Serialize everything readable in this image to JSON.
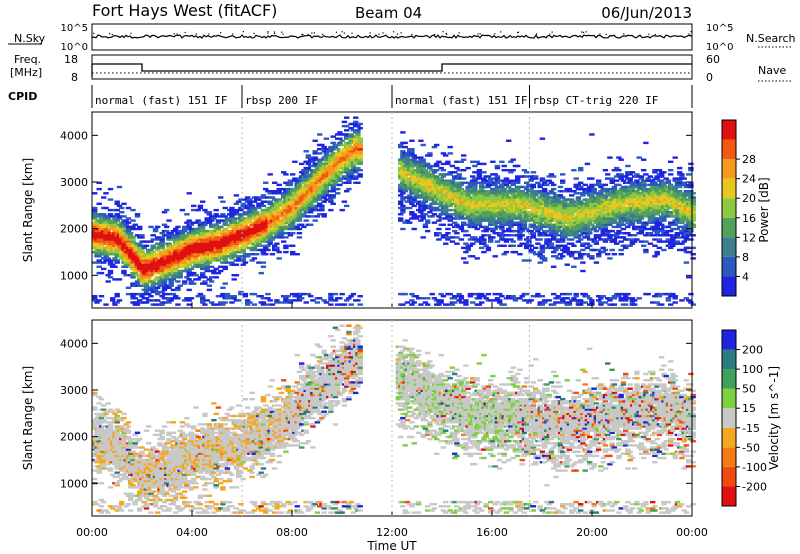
{
  "header": {
    "title": "Fort Hays West (fitACF)",
    "beam": "Beam 04",
    "date": "06/Jun/2013"
  },
  "top_panels": {
    "nsky_label": "N.Sky",
    "nsky_ticks": [
      "10^5",
      "10^0"
    ],
    "nsearch_label": "N.Search",
    "nsearch_ticks": [
      "10^5",
      "10^0"
    ],
    "freq_label_1": "Freq.",
    "freq_label_2": "[MHz]",
    "freq_ticks": [
      "18",
      "8"
    ],
    "nave_label": "Nave",
    "nave_ticks": [
      "60",
      "0"
    ],
    "cpid_label": "CPID",
    "freq_steps": [
      {
        "t": 0.0,
        "mhz": 14.5
      },
      {
        "t": 2.0,
        "mhz": 11.0
      },
      {
        "t": 14.0,
        "mhz": 14.5
      },
      {
        "t": 24.0,
        "mhz": 14.5
      }
    ],
    "cpid_modes": [
      {
        "label": "normal (fast) 151 IF",
        "start": 0.0
      },
      {
        "label": "rbsp 200 IF",
        "start": 6.0
      },
      {
        "label": "normal (fast) 151 IF",
        "start": 12.0
      },
      {
        "label": "rbsp CT-trig 220 IF",
        "start": 17.5
      }
    ]
  },
  "chart_data": [
    {
      "type": "heatmap",
      "quantity": "Power",
      "ylabel": "Slant Range [km]",
      "yticks": [
        1000,
        2000,
        3000,
        4000
      ],
      "ylim": [
        300,
        4500
      ],
      "colorbar_label": "Power [dB]",
      "colorbar_ticks": [
        4,
        8,
        12,
        16,
        20,
        24,
        28
      ],
      "colorbar_range": [
        0,
        32
      ],
      "colors": [
        "#1f24e0",
        "#2b59c0",
        "#3c7f8c",
        "#52a05a",
        "#8fc940",
        "#e8c81e",
        "#f59a1e",
        "#f25a14",
        "#e01010"
      ],
      "ridge_km": [
        {
          "t": 0.0,
          "r": 1850
        },
        {
          "t": 1.0,
          "r": 1750
        },
        {
          "t": 2.0,
          "r": 1100
        },
        {
          "t": 3.0,
          "r": 1300
        },
        {
          "t": 4.0,
          "r": 1550
        },
        {
          "t": 5.0,
          "r": 1650
        },
        {
          "t": 6.0,
          "r": 1850
        },
        {
          "t": 7.0,
          "r": 2100
        },
        {
          "t": 8.0,
          "r": 2450
        },
        {
          "t": 9.0,
          "r": 3000
        },
        {
          "t": 10.0,
          "r": 3500
        },
        {
          "t": 10.5,
          "r": 3700
        },
        {
          "t": 13.0,
          "r": 3000
        },
        {
          "t": 15.0,
          "r": 2500
        },
        {
          "t": 17.0,
          "r": 2500
        },
        {
          "t": 19.0,
          "r": 2200
        },
        {
          "t": 21.0,
          "r": 2500
        },
        {
          "t": 23.0,
          "r": 2600
        },
        {
          "t": 24.0,
          "r": 2300
        }
      ]
    },
    {
      "type": "heatmap",
      "quantity": "Velocity",
      "ylabel": "Slant Range [km]",
      "yticks": [
        1000,
        2000,
        3000,
        4000
      ],
      "ylim": [
        300,
        4500
      ],
      "colorbar_label": "Velocity [m s^-1]",
      "colorbar_ticks": [
        200,
        100,
        50,
        15,
        -15,
        -50,
        -100,
        -200
      ],
      "colors": [
        "#1f24e0",
        "#2b7c7c",
        "#3fa05a",
        "#7ed040",
        "#c8c8c8",
        "#f5a81e",
        "#f57a14",
        "#f04a10",
        "#e01010"
      ]
    }
  ],
  "xaxis": {
    "label": "Time UT",
    "ticks": [
      "00:00",
      "04:00",
      "08:00",
      "12:00",
      "16:00",
      "20:00",
      "00:00"
    ],
    "range_hours": [
      0,
      24
    ]
  }
}
